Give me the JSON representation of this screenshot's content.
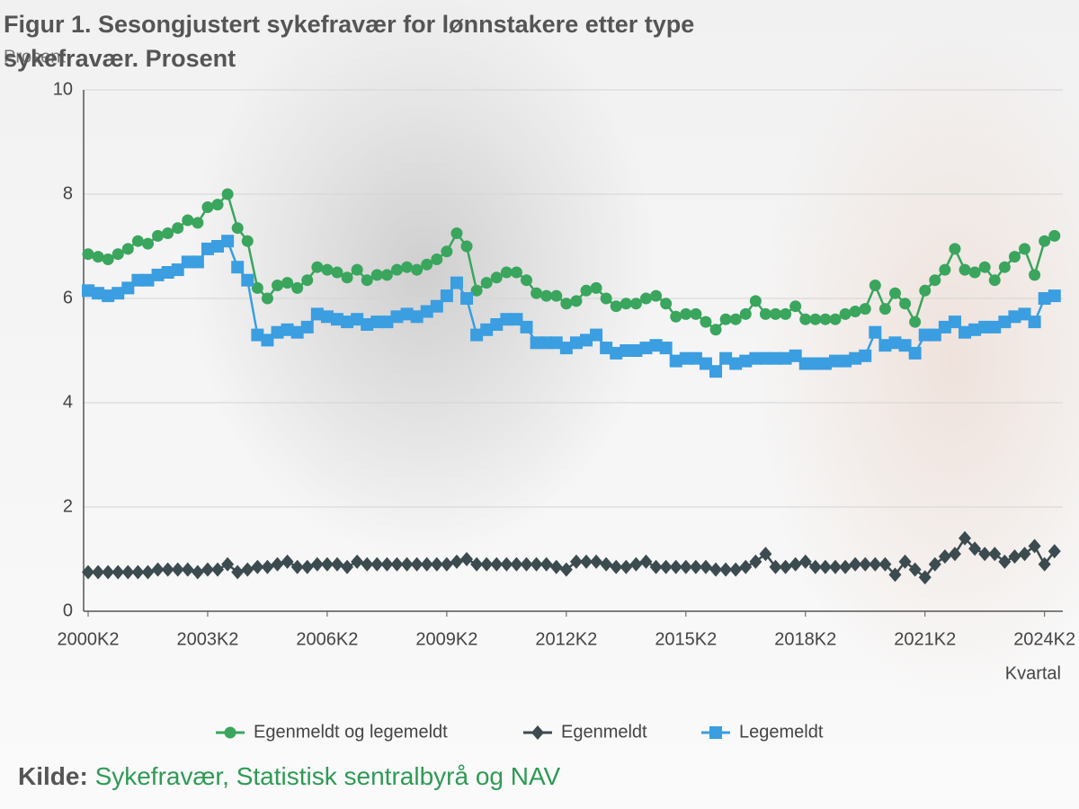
{
  "chart_data": {
    "type": "line",
    "title": "Figur 1. Sesongjustert sykefravær for lønnstakere etter type sykefravær. Prosent",
    "y_label": "Prosent",
    "x_label": "Kvartal",
    "source_label": "Kilde:",
    "source": "Sykefravær, Statistisk sentralbyrå og NAV",
    "categories": [
      "2000K2",
      null,
      null,
      null,
      null,
      null,
      null,
      null,
      null,
      null,
      null,
      null,
      "2003K2",
      null,
      null,
      null,
      null,
      null,
      null,
      null,
      null,
      null,
      null,
      null,
      "2006K2",
      null,
      null,
      null,
      null,
      null,
      null,
      null,
      null,
      null,
      null,
      null,
      "2009K2",
      null,
      null,
      null,
      null,
      null,
      null,
      null,
      null,
      null,
      null,
      null,
      "2012K2",
      null,
      null,
      null,
      null,
      null,
      null,
      null,
      null,
      null,
      null,
      null,
      "2015K2",
      null,
      null,
      null,
      null,
      null,
      null,
      null,
      null,
      null,
      null,
      null,
      "2018K2",
      null,
      null,
      null,
      null,
      null,
      null,
      null,
      null,
      null,
      null,
      null,
      "2021K2",
      null,
      null,
      null,
      null,
      null,
      null,
      null,
      null,
      null,
      null,
      null,
      "2024K2",
      null
    ],
    "ylim": [
      0,
      10
    ],
    "yticks": [
      0,
      2,
      4,
      6,
      8,
      10
    ],
    "grid": true,
    "series": [
      {
        "name": "Egenmeldt og legemeldt",
        "color": "#3aa55d",
        "marker": "circle",
        "values": [
          6.85,
          6.8,
          6.75,
          6.85,
          6.95,
          7.1,
          7.05,
          7.2,
          7.25,
          7.35,
          7.5,
          7.45,
          7.75,
          7.8,
          8.0,
          7.35,
          7.1,
          6.2,
          6.0,
          6.25,
          6.3,
          6.2,
          6.35,
          6.6,
          6.55,
          6.5,
          6.4,
          6.55,
          6.35,
          6.45,
          6.45,
          6.55,
          6.6,
          6.55,
          6.65,
          6.75,
          6.9,
          7.25,
          7.0,
          6.15,
          6.3,
          6.4,
          6.5,
          6.5,
          6.35,
          6.1,
          6.05,
          6.05,
          5.9,
          5.95,
          6.15,
          6.2,
          6.0,
          5.85,
          5.9,
          5.9,
          6.0,
          6.05,
          5.9,
          5.65,
          5.7,
          5.7,
          5.55,
          5.4,
          5.6,
          5.6,
          5.7,
          5.95,
          5.7,
          5.7,
          5.7,
          5.85,
          5.6,
          5.6,
          5.6,
          5.6,
          5.7,
          5.75,
          5.8,
          6.25,
          5.8,
          6.1,
          5.9,
          5.55,
          6.15,
          6.35,
          6.55,
          6.95,
          6.55,
          6.5,
          6.6,
          6.35,
          6.6,
          6.8,
          6.95,
          6.45,
          7.1,
          7.2
        ]
      },
      {
        "name": "Egenmeldt",
        "color": "#3c4b50",
        "marker": "diamond",
        "values": [
          0.75,
          0.75,
          0.75,
          0.75,
          0.75,
          0.75,
          0.75,
          0.8,
          0.8,
          0.8,
          0.8,
          0.75,
          0.8,
          0.8,
          0.9,
          0.75,
          0.8,
          0.85,
          0.85,
          0.9,
          0.95,
          0.85,
          0.85,
          0.9,
          0.9,
          0.9,
          0.85,
          0.95,
          0.9,
          0.9,
          0.9,
          0.9,
          0.9,
          0.9,
          0.9,
          0.9,
          0.9,
          0.95,
          1.0,
          0.9,
          0.9,
          0.9,
          0.9,
          0.9,
          0.9,
          0.9,
          0.9,
          0.85,
          0.8,
          0.95,
          0.95,
          0.95,
          0.9,
          0.85,
          0.85,
          0.9,
          0.95,
          0.85,
          0.85,
          0.85,
          0.85,
          0.85,
          0.85,
          0.8,
          0.8,
          0.8,
          0.85,
          0.95,
          1.1,
          0.85,
          0.85,
          0.9,
          0.95,
          0.85,
          0.85,
          0.85,
          0.85,
          0.9,
          0.9,
          0.9,
          0.9,
          0.7,
          0.95,
          0.8,
          0.65,
          0.9,
          1.05,
          1.1,
          1.4,
          1.2,
          1.1,
          1.1,
          0.95,
          1.05,
          1.1,
          1.25,
          0.9,
          1.15
        ]
      },
      {
        "name": "Legemeldt",
        "color": "#3a9ee0",
        "marker": "square",
        "values": [
          6.15,
          6.1,
          6.05,
          6.1,
          6.2,
          6.35,
          6.35,
          6.45,
          6.5,
          6.55,
          6.7,
          6.7,
          6.95,
          7.0,
          7.1,
          6.6,
          6.35,
          5.3,
          5.2,
          5.35,
          5.4,
          5.35,
          5.45,
          5.7,
          5.65,
          5.6,
          5.55,
          5.6,
          5.5,
          5.55,
          5.55,
          5.65,
          5.7,
          5.65,
          5.75,
          5.85,
          6.05,
          6.3,
          6.0,
          5.3,
          5.4,
          5.5,
          5.6,
          5.6,
          5.45,
          5.15,
          5.15,
          5.15,
          5.05,
          5.15,
          5.2,
          5.3,
          5.05,
          4.95,
          5.0,
          5.0,
          5.05,
          5.1,
          5.05,
          4.8,
          4.85,
          4.85,
          4.75,
          4.6,
          4.85,
          4.75,
          4.8,
          4.85,
          4.85,
          4.85,
          4.85,
          4.9,
          4.75,
          4.75,
          4.75,
          4.8,
          4.8,
          4.85,
          4.9,
          5.35,
          5.1,
          5.15,
          5.1,
          4.95,
          5.3,
          5.3,
          5.45,
          5.55,
          5.35,
          5.4,
          5.45,
          5.45,
          5.55,
          5.65,
          5.7,
          5.55,
          6.0,
          6.05
        ]
      }
    ]
  }
}
